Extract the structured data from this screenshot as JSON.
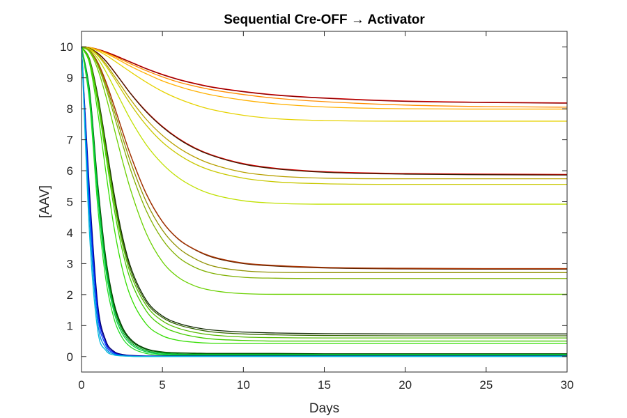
{
  "chart_data": {
    "type": "line",
    "title": "Sequential Cre-OFF → Activator",
    "xlabel": "Days",
    "ylabel": "[AAV]",
    "xlim": [
      0,
      30
    ],
    "ylim": [
      -0.5,
      10.5
    ],
    "xticks": [
      0,
      5,
      10,
      15,
      20,
      25,
      30
    ],
    "yticks": [
      0,
      1,
      2,
      3,
      4,
      5,
      6,
      7,
      8,
      9,
      10
    ],
    "grid": false,
    "legend": "none",
    "x": [
      0,
      0.5,
      1,
      1.5,
      2,
      2.5,
      3,
      4,
      5,
      6,
      7,
      8,
      10,
      12,
      15,
      20,
      25,
      30
    ],
    "series": [
      {
        "color": "#ff0000",
        "values": [
          10,
          9.98,
          9.92,
          9.84,
          9.74,
          9.63,
          9.52,
          9.3,
          9.11,
          8.95,
          8.82,
          8.71,
          8.56,
          8.45,
          8.35,
          8.25,
          8.21,
          8.19
        ]
      },
      {
        "color": "#8b0000",
        "values": [
          10,
          9.98,
          9.92,
          9.83,
          9.73,
          9.62,
          9.51,
          9.29,
          9.1,
          8.94,
          8.81,
          8.7,
          8.55,
          8.44,
          8.34,
          8.24,
          8.2,
          8.18
        ]
      },
      {
        "color": "#ff8c00",
        "values": [
          10,
          9.98,
          9.91,
          9.81,
          9.7,
          9.58,
          9.46,
          9.23,
          9.03,
          8.86,
          8.73,
          8.62,
          8.46,
          8.34,
          8.23,
          8.12,
          8.07,
          8.05
        ]
      },
      {
        "color": "#ffb000",
        "values": [
          10,
          9.98,
          9.9,
          9.79,
          9.66,
          9.52,
          9.38,
          9.13,
          8.9,
          8.72,
          8.57,
          8.45,
          8.28,
          8.16,
          8.06,
          8.0,
          7.99,
          7.99
        ]
      },
      {
        "color": "#e6d200",
        "values": [
          10,
          9.97,
          9.87,
          9.73,
          9.56,
          9.38,
          9.2,
          8.86,
          8.56,
          8.32,
          8.13,
          7.98,
          7.79,
          7.68,
          7.62,
          7.6,
          7.6,
          7.6
        ]
      },
      {
        "color": "#dd0000",
        "values": [
          10,
          9.95,
          9.8,
          9.55,
          9.22,
          8.87,
          8.52,
          7.92,
          7.43,
          7.04,
          6.74,
          6.52,
          6.23,
          6.08,
          5.97,
          5.91,
          5.89,
          5.88
        ]
      },
      {
        "color": "#3b1a00",
        "values": [
          10,
          9.95,
          9.79,
          9.54,
          9.21,
          8.86,
          8.51,
          7.9,
          7.41,
          7.02,
          6.72,
          6.5,
          6.21,
          6.06,
          5.95,
          5.89,
          5.87,
          5.86
        ]
      },
      {
        "color": "#b8a000",
        "values": [
          10,
          9.94,
          9.75,
          9.45,
          9.08,
          8.7,
          8.32,
          7.66,
          7.14,
          6.74,
          6.44,
          6.22,
          5.95,
          5.83,
          5.76,
          5.74,
          5.74,
          5.74
        ]
      },
      {
        "color": "#c8c800",
        "values": [
          10,
          9.93,
          9.72,
          9.39,
          9.0,
          8.58,
          8.17,
          7.47,
          6.92,
          6.52,
          6.22,
          6.01,
          5.76,
          5.64,
          5.58,
          5.56,
          5.56,
          5.56
        ]
      },
      {
        "color": "#c0e000",
        "values": [
          10,
          9.91,
          9.63,
          9.2,
          8.7,
          8.18,
          7.68,
          6.84,
          6.22,
          5.77,
          5.46,
          5.25,
          5.03,
          4.95,
          4.92,
          4.92,
          4.92,
          4.92
        ]
      },
      {
        "color": "#552200",
        "values": [
          10,
          9.88,
          9.5,
          8.88,
          8.12,
          7.32,
          6.55,
          5.25,
          4.35,
          3.78,
          3.45,
          3.22,
          3.0,
          2.92,
          2.86,
          2.83,
          2.82,
          2.82
        ]
      },
      {
        "color": "#aa3300",
        "values": [
          10,
          9.88,
          9.5,
          8.88,
          8.12,
          7.32,
          6.55,
          5.26,
          4.36,
          3.79,
          3.46,
          3.24,
          3.02,
          2.94,
          2.88,
          2.85,
          2.84,
          2.84
        ]
      },
      {
        "color": "#909000",
        "values": [
          10,
          9.87,
          9.45,
          8.78,
          7.97,
          7.13,
          6.33,
          5.0,
          4.08,
          3.5,
          3.16,
          2.94,
          2.77,
          2.72,
          2.71,
          2.71,
          2.71,
          2.71
        ]
      },
      {
        "color": "#80b000",
        "values": [
          10,
          9.86,
          9.4,
          8.68,
          7.81,
          6.92,
          6.08,
          4.71,
          3.78,
          3.2,
          2.88,
          2.7,
          2.56,
          2.53,
          2.52,
          2.52,
          2.52,
          2.52
        ]
      },
      {
        "color": "#6ad000",
        "values": [
          10,
          9.83,
          9.28,
          8.42,
          7.4,
          6.38,
          5.44,
          3.98,
          3.06,
          2.55,
          2.28,
          2.14,
          2.03,
          2.01,
          2.01,
          2.01,
          2.01,
          2.01
        ]
      },
      {
        "color": "#102800",
        "values": [
          10,
          9.6,
          8.45,
          6.9,
          5.3,
          3.95,
          2.95,
          1.82,
          1.31,
          1.07,
          0.94,
          0.86,
          0.79,
          0.76,
          0.74,
          0.73,
          0.73,
          0.73
        ]
      },
      {
        "color": "#336600",
        "values": [
          10,
          9.58,
          8.38,
          6.8,
          5.18,
          3.84,
          2.85,
          1.75,
          1.26,
          1.02,
          0.89,
          0.8,
          0.73,
          0.7,
          0.68,
          0.67,
          0.67,
          0.67
        ]
      },
      {
        "color": "#55bb00",
        "values": [
          10,
          9.56,
          8.3,
          6.68,
          5.04,
          3.7,
          2.72,
          1.65,
          1.15,
          0.91,
          0.78,
          0.7,
          0.63,
          0.61,
          0.6,
          0.6,
          0.6,
          0.6
        ]
      },
      {
        "color": "#44cc00",
        "values": [
          10,
          9.53,
          8.2,
          6.5,
          4.82,
          3.48,
          2.52,
          1.47,
          0.98,
          0.76,
          0.64,
          0.57,
          0.52,
          0.5,
          0.5,
          0.5,
          0.5,
          0.5
        ]
      },
      {
        "color": "#33dd00",
        "values": [
          10,
          9.45,
          7.9,
          5.98,
          4.2,
          2.88,
          1.98,
          1.05,
          0.67,
          0.52,
          0.46,
          0.43,
          0.42,
          0.42,
          0.42,
          0.42,
          0.42,
          0.42
        ]
      },
      {
        "color": "#003300",
        "values": [
          10,
          8.6,
          5.6,
          3.2,
          1.75,
          0.98,
          0.58,
          0.25,
          0.15,
          0.12,
          0.11,
          0.1,
          0.1,
          0.1,
          0.09,
          0.09,
          0.09,
          0.09
        ]
      },
      {
        "color": "#006600",
        "values": [
          10,
          8.55,
          5.5,
          3.1,
          1.68,
          0.93,
          0.54,
          0.23,
          0.14,
          0.11,
          0.1,
          0.09,
          0.09,
          0.09,
          0.08,
          0.08,
          0.08,
          0.08
        ]
      },
      {
        "color": "#00aa22",
        "values": [
          10,
          8.5,
          5.38,
          2.98,
          1.58,
          0.85,
          0.48,
          0.19,
          0.11,
          0.08,
          0.07,
          0.07,
          0.07,
          0.07,
          0.07,
          0.07,
          0.07,
          0.07
        ]
      },
      {
        "color": "#00cc44",
        "values": [
          10,
          8.4,
          5.2,
          2.8,
          1.45,
          0.76,
          0.42,
          0.15,
          0.08,
          0.06,
          0.05,
          0.05,
          0.05,
          0.05,
          0.05,
          0.05,
          0.05,
          0.05
        ]
      },
      {
        "color": "#22dd22",
        "values": [
          10,
          8.2,
          4.85,
          2.5,
          1.24,
          0.62,
          0.32,
          0.1,
          0.05,
          0.04,
          0.03,
          0.03,
          0.03,
          0.03,
          0.03,
          0.03,
          0.03,
          0.03
        ]
      },
      {
        "color": "#000066",
        "values": [
          10,
          5.3,
          1.7,
          0.52,
          0.17,
          0.07,
          0.04,
          0.02,
          0.02,
          0.02,
          0.02,
          0.02,
          0.02,
          0.02,
          0.02,
          0.02,
          0.02,
          0.02
        ]
      },
      {
        "color": "#0000cc",
        "values": [
          10,
          5.1,
          1.55,
          0.45,
          0.14,
          0.05,
          0.03,
          0.01,
          0.01,
          0.01,
          0.01,
          0.01,
          0.01,
          0.01,
          0.01,
          0.01,
          0.01,
          0.01
        ]
      },
      {
        "color": "#0044ff",
        "values": [
          10,
          4.8,
          1.35,
          0.37,
          0.11,
          0.04,
          0.02,
          0.01,
          0.01,
          0.01,
          0.01,
          0.01,
          0.01,
          0.01,
          0.01,
          0.01,
          0.01,
          0.01
        ]
      },
      {
        "color": "#0088dd",
        "values": [
          10,
          4.4,
          1.1,
          0.28,
          0.08,
          0.03,
          0.01,
          0.0,
          0.0,
          0.0,
          0.0,
          0.0,
          0.0,
          0.0,
          0.0,
          0.0,
          0.0,
          0.0
        ]
      },
      {
        "color": "#00bbdd",
        "values": [
          10,
          3.9,
          0.85,
          0.2,
          0.05,
          0.02,
          0.01,
          0.0,
          0.0,
          0.0,
          0.0,
          0.0,
          0.0,
          0.0,
          0.0,
          0.0,
          0.0,
          0.0
        ]
      }
    ]
  }
}
